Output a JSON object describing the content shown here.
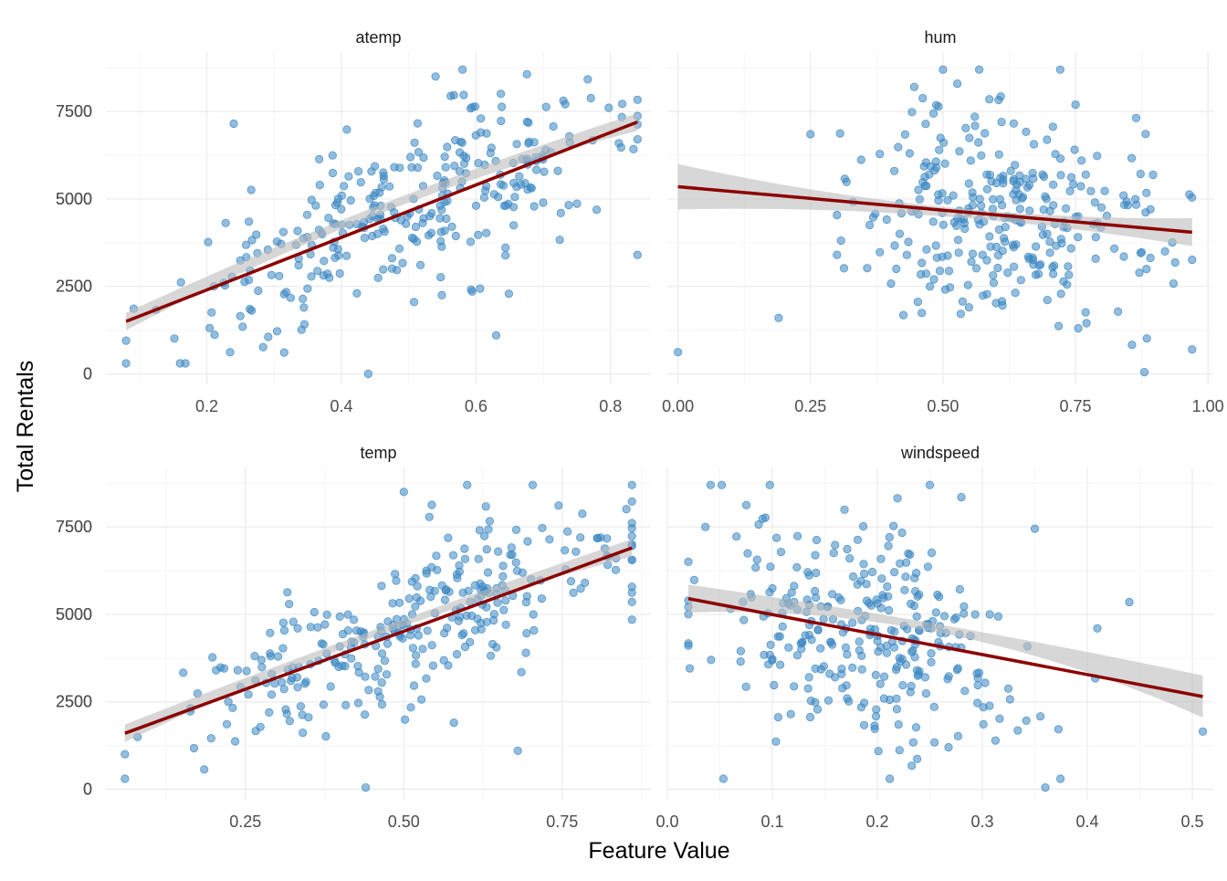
{
  "chart_data": {
    "type": "scatter",
    "xlabel": "Feature Value",
    "ylabel": "Total Rentals",
    "grid": true,
    "legend": "none",
    "colors": {
      "points": "#3a87c2",
      "fit_line": "#8b0000",
      "band": "#bdbdbd",
      "grid_major": "#ebebeb",
      "grid_minor": "#f5f5f5"
    },
    "point_alpha": 0.55,
    "facets": [
      {
        "name": "atemp",
        "xlim": [
          0.05,
          0.86
        ],
        "ylim": [
          -300,
          9200
        ],
        "x_ticks": [
          "0.2",
          "0.4",
          "0.6",
          "0.8"
        ],
        "y_ticks": [
          "0",
          "2500",
          "5000",
          "7500"
        ],
        "fit_line": {
          "x": [
            0.08,
            0.84
          ],
          "y": [
            1500,
            7200
          ]
        },
        "band": {
          "lower_start": 1250,
          "upper_start": 1750,
          "lower_end": 6950,
          "upper_end": 7450,
          "lower_mid": 4600,
          "upper_mid": 4850
        },
        "point_cloud": {
          "n": 300,
          "x_center": 0.5,
          "x_spread": 0.17,
          "x_min": 0.08,
          "x_max": 0.84,
          "y_min": 0,
          "y_max": 8700,
          "trend": [
            1500,
            7200
          ],
          "noise": 1300
        },
        "highlighted_points": [
          [
            0.24,
            7150
          ],
          [
            0.44,
            0
          ],
          [
            0.63,
            1100
          ],
          [
            0.54,
            8500
          ],
          [
            0.58,
            8700
          ],
          [
            0.08,
            950
          ],
          [
            0.84,
            3400
          ]
        ]
      },
      {
        "name": "hum",
        "xlim": [
          -0.02,
          1.01
        ],
        "ylim": [
          -300,
          9200
        ],
        "x_ticks": [
          "0.00",
          "0.25",
          "0.50",
          "0.75",
          "1.00"
        ],
        "y_ticks": [
          "0",
          "2500",
          "5000",
          "7500"
        ],
        "fit_line": {
          "x": [
            0.0,
            0.97
          ],
          "y": [
            5350,
            4050
          ]
        },
        "band": {
          "lower_start": 4700,
          "upper_start": 6000,
          "lower_end": 3650,
          "upper_end": 4450,
          "lower_mid": 4520,
          "upper_mid": 4800
        },
        "point_cloud": {
          "n": 300,
          "x_center": 0.63,
          "x_spread": 0.14,
          "x_min": 0.3,
          "x_max": 0.97,
          "y_min": 0,
          "y_max": 8700,
          "trend": [
            5350,
            4050
          ],
          "noise": 1900
        },
        "highlighted_points": [
          [
            0.0,
            620
          ],
          [
            0.19,
            1600
          ],
          [
            0.25,
            6850
          ],
          [
            0.5,
            8700
          ],
          [
            0.88,
            50
          ],
          [
            0.97,
            700
          ]
        ]
      },
      {
        "name": "temp",
        "xlim": [
          0.03,
          0.89
        ],
        "ylim": [
          -300,
          9200
        ],
        "x_ticks": [
          "0.25",
          "0.50",
          "0.75"
        ],
        "y_ticks": [
          "0",
          "2500",
          "5000",
          "7500"
        ],
        "fit_line": {
          "x": [
            0.06,
            0.86
          ],
          "y": [
            1600,
            6900
          ]
        },
        "band": {
          "lower_start": 1350,
          "upper_start": 1850,
          "lower_end": 6650,
          "upper_end": 7150,
          "lower_mid": 4400,
          "upper_mid": 4600
        },
        "point_cloud": {
          "n": 300,
          "x_center": 0.5,
          "x_spread": 0.18,
          "x_min": 0.06,
          "x_max": 0.86,
          "y_min": 0,
          "y_max": 8700,
          "trend": [
            1600,
            6900
          ],
          "noise": 1300
        },
        "highlighted_points": [
          [
            0.44,
            50
          ],
          [
            0.68,
            1100
          ],
          [
            0.06,
            1000
          ],
          [
            0.86,
            4850
          ],
          [
            0.6,
            8700
          ],
          [
            0.5,
            8500
          ]
        ]
      },
      {
        "name": "windspeed",
        "xlim": [
          0.0,
          0.52
        ],
        "ylim": [
          -300,
          9200
        ],
        "x_ticks": [
          "0.0",
          "0.1",
          "0.2",
          "0.3",
          "0.4",
          "0.5"
        ],
        "y_ticks": [
          "0",
          "2500",
          "5000",
          "7500"
        ],
        "fit_line": {
          "x": [
            0.02,
            0.51
          ],
          "y": [
            5450,
            2650
          ]
        },
        "band": {
          "lower_start": 5050,
          "upper_start": 5850,
          "lower_end": 2050,
          "upper_end": 3250,
          "lower_mid": 4440,
          "upper_mid": 4680
        },
        "point_cloud": {
          "n": 300,
          "x_center": 0.19,
          "x_spread": 0.075,
          "x_min": 0.02,
          "x_max": 0.51,
          "y_min": 0,
          "y_max": 8700,
          "trend": [
            5450,
            2650
          ],
          "noise": 1900
        },
        "highlighted_points": [
          [
            0.02,
            5000
          ],
          [
            0.51,
            1650
          ],
          [
            0.44,
            5350
          ],
          [
            0.35,
            7450
          ],
          [
            0.36,
            50
          ],
          [
            0.25,
            8700
          ],
          [
            0.28,
            8350
          ]
        ]
      }
    ]
  }
}
